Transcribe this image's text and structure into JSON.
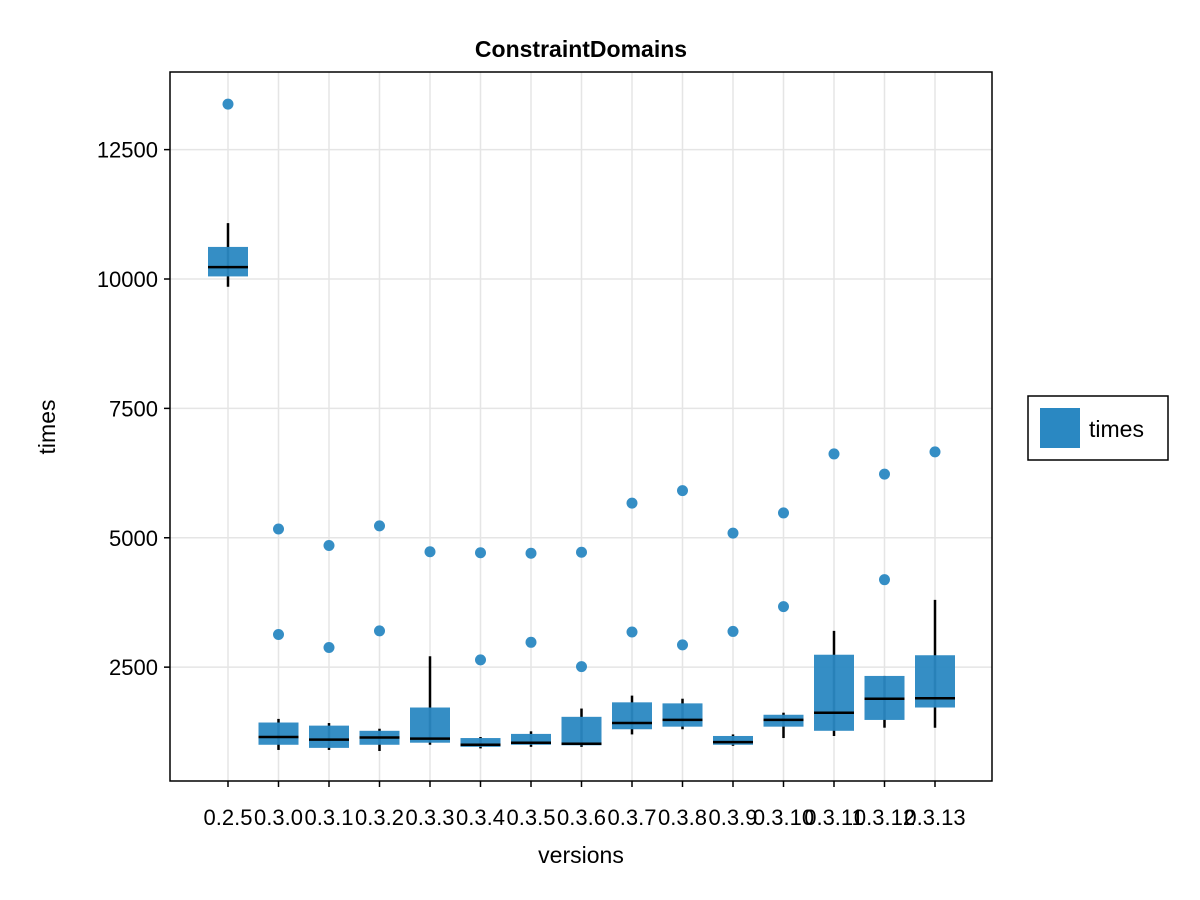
{
  "chart_data": {
    "type": "boxplot",
    "title": "ConstraintDomains",
    "xlabel": "versions",
    "ylabel": "times",
    "categories": [
      "0.2.5",
      "0.3.0",
      "0.3.1",
      "0.3.2",
      "0.3.3",
      "0.3.4",
      "0.3.5",
      "0.3.6",
      "0.3.7",
      "0.3.8",
      "0.3.9",
      "0.3.10",
      "0.3.11",
      "0.3.12",
      "0.3.13"
    ],
    "ylim": [
      300,
      14000
    ],
    "yticks": [
      2500,
      5000,
      7500,
      10000,
      12500
    ],
    "grid": true,
    "legend": {
      "position": "right",
      "entries": [
        "times"
      ]
    },
    "colors": {
      "box": "#2a88c2",
      "median": "#000000",
      "whisker": "#000000",
      "outlier": "#2a88c2",
      "grid": "#e5e5e5"
    },
    "series": [
      {
        "name": "times",
        "boxes": [
          {
            "category": "0.2.5",
            "whisker_low": 9850,
            "q1": 10050,
            "median": 10230,
            "q3": 10620,
            "whisker_high": 11080,
            "outliers": [
              13380
            ]
          },
          {
            "category": "0.3.0",
            "whisker_low": 900,
            "q1": 1000,
            "median": 1150,
            "q3": 1430,
            "whisker_high": 1500,
            "outliers": [
              3130,
              5170
            ]
          },
          {
            "category": "0.3.1",
            "whisker_low": 900,
            "q1": 940,
            "median": 1100,
            "q3": 1370,
            "whisker_high": 1420,
            "outliers": [
              2880,
              4850
            ]
          },
          {
            "category": "0.3.2",
            "whisker_low": 880,
            "q1": 1000,
            "median": 1140,
            "q3": 1270,
            "whisker_high": 1310,
            "outliers": [
              3200,
              5230
            ]
          },
          {
            "category": "0.3.3",
            "whisker_low": 1000,
            "q1": 1040,
            "median": 1120,
            "q3": 1720,
            "whisker_high": 2710,
            "outliers": [
              4730
            ]
          },
          {
            "category": "0.3.4",
            "whisker_low": 930,
            "q1": 960,
            "median": 1000,
            "q3": 1130,
            "whisker_high": 1150,
            "outliers": [
              2640,
              4710
            ]
          },
          {
            "category": "0.3.5",
            "whisker_low": 960,
            "q1": 1000,
            "median": 1040,
            "q3": 1210,
            "whisker_high": 1260,
            "outliers": [
              2980,
              4700
            ]
          },
          {
            "category": "0.3.6",
            "whisker_low": 960,
            "q1": 990,
            "median": 1020,
            "q3": 1540,
            "whisker_high": 1700,
            "outliers": [
              2510,
              4720
            ]
          },
          {
            "category": "0.3.7",
            "whisker_low": 1200,
            "q1": 1300,
            "median": 1420,
            "q3": 1820,
            "whisker_high": 1950,
            "outliers": [
              3180,
              5670
            ]
          },
          {
            "category": "0.3.8",
            "whisker_low": 1300,
            "q1": 1350,
            "median": 1480,
            "q3": 1800,
            "whisker_high": 1890,
            "outliers": [
              2930,
              5910
            ]
          },
          {
            "category": "0.3.9",
            "whisker_low": 980,
            "q1": 1000,
            "median": 1050,
            "q3": 1170,
            "whisker_high": 1200,
            "outliers": [
              3190,
              5090
            ]
          },
          {
            "category": "0.3.10",
            "whisker_low": 1130,
            "q1": 1350,
            "median": 1480,
            "q3": 1580,
            "whisker_high": 1620,
            "outliers": [
              3670,
              5480
            ]
          },
          {
            "category": "0.3.11",
            "whisker_low": 1170,
            "q1": 1270,
            "median": 1620,
            "q3": 2740,
            "whisker_high": 3200,
            "outliers": [
              6620
            ]
          },
          {
            "category": "0.3.12",
            "whisker_low": 1330,
            "q1": 1480,
            "median": 1890,
            "q3": 2330,
            "whisker_high": 2330,
            "outliers": [
              4190,
              6230
            ]
          },
          {
            "category": "0.3.13",
            "whisker_low": 1330,
            "q1": 1720,
            "median": 1900,
            "q3": 2730,
            "whisker_high": 3800,
            "outliers": [
              6660
            ]
          }
        ]
      }
    ]
  }
}
